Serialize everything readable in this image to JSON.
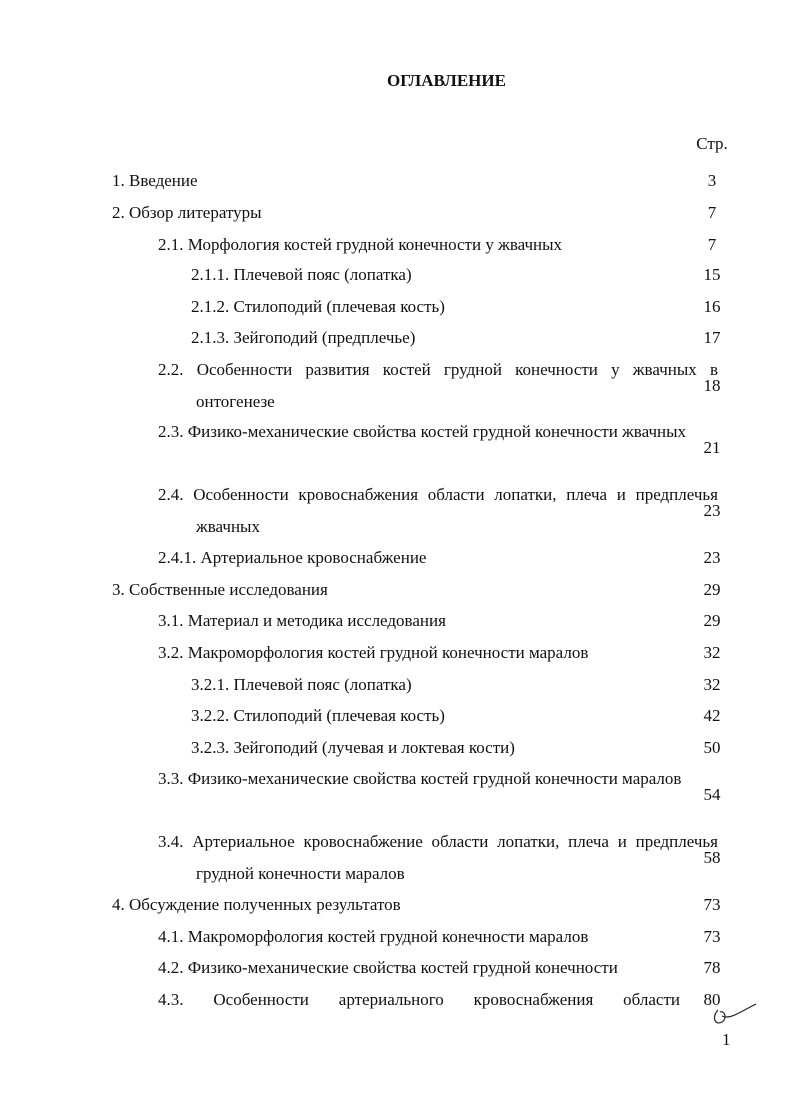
{
  "title": "ОГЛАВЛЕНИЕ",
  "page_column_header": "Стр.",
  "entries": [
    {
      "level": 1,
      "text": "1. Введение",
      "page": "3"
    },
    {
      "level": 1,
      "text": "2. Обзор литературы",
      "page": "7"
    },
    {
      "level": 2,
      "text": "2.1. Морфология костей грудной конечности у жвачных",
      "page": "7"
    },
    {
      "level": 3,
      "text": "2.1.1. Плечевой пояс (лопатка)",
      "page": "15"
    },
    {
      "level": 3,
      "text": "2.1.2. Стилоподий (плечевая кость)",
      "page": "16"
    },
    {
      "level": 3,
      "text": "2.1.3. Зейгоподий (предплечье)",
      "page": "17"
    },
    {
      "level": 2,
      "text": "2.2. Особенности развития костей грудной конечности у жвачных в онтогенезе",
      "page": "18"
    },
    {
      "level": 2,
      "text": "2.3. Физико-механические свойства костей грудной конечности жвачных",
      "page": "21"
    },
    {
      "level": 2,
      "text": "2.4. Особенности кровоснабжения области лопатки, плеча и предплечья жвачных",
      "page": "23"
    },
    {
      "level": 2,
      "text": "2.4.1. Артериальное кровоснабжение",
      "page": "23"
    },
    {
      "level": 1,
      "text": "3. Собственные исследования",
      "page": "29"
    },
    {
      "level": 2,
      "text": "3.1. Материал и методика исследования",
      "page": "29"
    },
    {
      "level": 2,
      "text": "3.2. Макроморфология костей грудной конечности маралов",
      "page": "32"
    },
    {
      "level": 3,
      "text": "3.2.1. Плечевой пояс (лопатка)",
      "page": "32"
    },
    {
      "level": 3,
      "text": "3.2.2. Стилоподий (плечевая кость)",
      "page": "42"
    },
    {
      "level": 3,
      "text": "3.2.3. Зейгоподий (лучевая и локтевая кости)",
      "page": "50"
    },
    {
      "level": 2,
      "text": "3.3. Физико-механические свойства костей грудной конечности маралов",
      "page": "54"
    },
    {
      "level": 2,
      "text": "3.4. Артериальное кровоснабжение области лопатки, плеча и предплечья грудной конечности маралов",
      "page": "58"
    },
    {
      "level": 1,
      "text": "4. Обсуждение полученных результатов",
      "page": "73"
    },
    {
      "level": 2,
      "text": "4.1. Макроморфология костей грудной конечности маралов",
      "page": "73"
    },
    {
      "level": 2,
      "text": "4.2. Физико-механические свойства костей грудной конечности",
      "page": "78"
    },
    {
      "level": 2,
      "text": "4.3. Особенности артериального кровоснабжения области",
      "page": "80"
    }
  ],
  "page_number": "1"
}
